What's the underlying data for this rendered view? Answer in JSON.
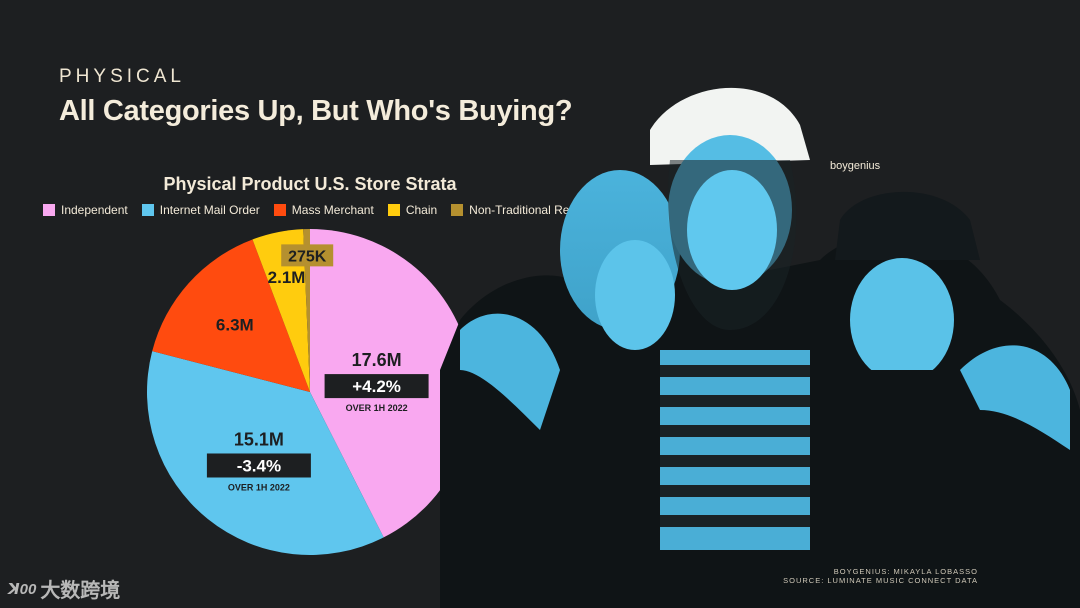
{
  "header": {
    "eyebrow": "PHYSICAL",
    "headline": "All Categories Up, But Who's Buying?"
  },
  "chart_data": {
    "type": "pie",
    "title": "Physical Product U.S. Store Strata",
    "legend_position": "top",
    "slices": [
      {
        "name": "Independent",
        "value": 17.6,
        "label": "17.6M",
        "color": "#f9a8f0",
        "change": "+4.2%",
        "change_note": "OVER 1H 2022"
      },
      {
        "name": "Internet Mail Order",
        "value": 15.1,
        "label": "15.1M",
        "color": "#5fc6ee",
        "change": "-3.4%",
        "change_note": "OVER 1H 2022"
      },
      {
        "name": "Mass Merchant",
        "value": 6.3,
        "label": "6.3M",
        "color": "#ff4b0f"
      },
      {
        "name": "Chain",
        "value": 2.1,
        "label": "2.1M",
        "color": "#ffcc0e"
      },
      {
        "name": "Non-Traditional Retail",
        "value": 0.275,
        "label": "275K",
        "color": "#b5902f"
      }
    ]
  },
  "photo": {
    "label": "boygenius"
  },
  "credits": {
    "line1": "BOYGENIUS: MIKAYLA LOBASSO",
    "line2": "SOURCE: LUMINATE MUSIC CONNECT  DATA"
  },
  "watermark": {
    "logo": "ꓘ00",
    "text": "大数跨境"
  }
}
